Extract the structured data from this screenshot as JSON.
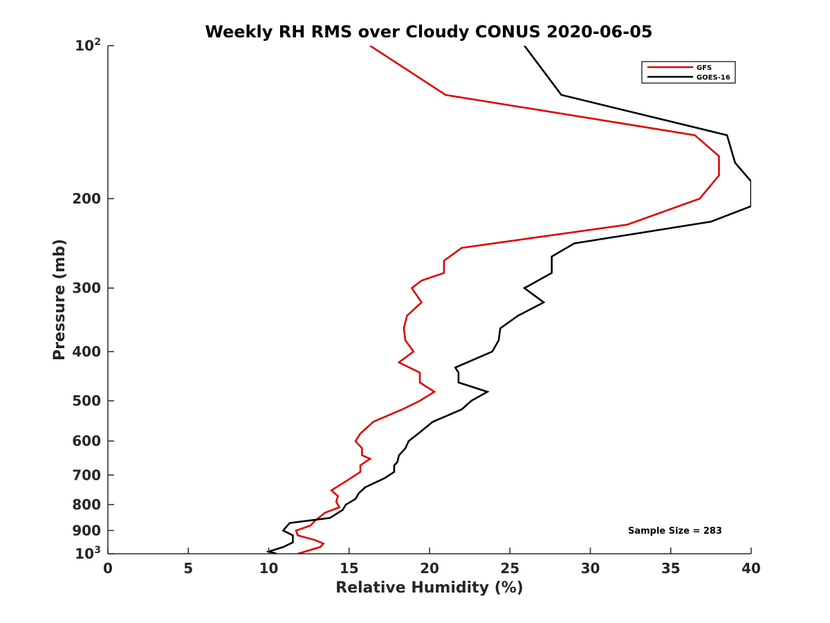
{
  "chart_data": {
    "type": "line",
    "title": "Weekly RH RMS over Cloudy CONUS 2020-06-05",
    "xlabel": "Relative Humidity (%)",
    "ylabel": "Pressure (mb)",
    "xlim": [
      0,
      40
    ],
    "ylim": [
      100,
      1000
    ],
    "y_scale": "log",
    "y_reversed": true,
    "grid": false,
    "legend_position": "top-right",
    "x_ticks": [
      "0",
      "5",
      "10",
      "15",
      "20",
      "25",
      "30",
      "35",
      "40"
    ],
    "y_ticks": [
      {
        "value": 100,
        "base": "10",
        "exp": "2"
      },
      {
        "value": 200,
        "text": "200"
      },
      {
        "value": 300,
        "text": "300"
      },
      {
        "value": 400,
        "text": "400"
      },
      {
        "value": 500,
        "text": "500"
      },
      {
        "value": 600,
        "text": "600"
      },
      {
        "value": 700,
        "text": "700"
      },
      {
        "value": 800,
        "text": "800"
      },
      {
        "value": 900,
        "text": "900"
      },
      {
        "value": 1000,
        "base": "10",
        "exp": "3"
      }
    ],
    "annotation": "Sample Size = 283",
    "series": [
      {
        "name": "GFS",
        "color": "#e00000",
        "points": [
          [
            16.3,
            100
          ],
          [
            21.0,
            125
          ],
          [
            36.5,
            150
          ],
          [
            38.0,
            165
          ],
          [
            38.0,
            180
          ],
          [
            36.8,
            200
          ],
          [
            32.3,
            225
          ],
          [
            22.0,
            250
          ],
          [
            20.9,
            265
          ],
          [
            20.9,
            280
          ],
          [
            19.5,
            290
          ],
          [
            18.9,
            300
          ],
          [
            19.5,
            320
          ],
          [
            18.6,
            340
          ],
          [
            18.4,
            360
          ],
          [
            18.5,
            380
          ],
          [
            19.0,
            400
          ],
          [
            18.1,
            420
          ],
          [
            19.4,
            440
          ],
          [
            19.4,
            460
          ],
          [
            20.3,
            480
          ],
          [
            19.4,
            500
          ],
          [
            18.3,
            520
          ],
          [
            16.5,
            550
          ],
          [
            15.7,
            580
          ],
          [
            15.4,
            600
          ],
          [
            15.8,
            620
          ],
          [
            15.8,
            640
          ],
          [
            16.3,
            650
          ],
          [
            15.7,
            670
          ],
          [
            15.7,
            690
          ],
          [
            14.8,
            720
          ],
          [
            13.9,
            750
          ],
          [
            14.3,
            770
          ],
          [
            14.2,
            790
          ],
          [
            14.4,
            810
          ],
          [
            13.5,
            830
          ],
          [
            12.9,
            860
          ],
          [
            12.6,
            880
          ],
          [
            11.7,
            900
          ],
          [
            11.8,
            920
          ],
          [
            12.9,
            940
          ],
          [
            13.4,
            955
          ],
          [
            13.2,
            970
          ],
          [
            11.8,
            1000
          ]
        ]
      },
      {
        "name": "GOES-16",
        "color": "#000000",
        "points": [
          [
            25.9,
            100
          ],
          [
            28.2,
            125
          ],
          [
            38.5,
            150
          ],
          [
            39.0,
            170
          ],
          [
            40.0,
            185
          ],
          [
            40.0,
            207
          ],
          [
            37.5,
            222
          ],
          [
            29.0,
            245
          ],
          [
            27.6,
            260
          ],
          [
            27.6,
            280
          ],
          [
            25.9,
            300
          ],
          [
            27.1,
            320
          ],
          [
            25.5,
            340
          ],
          [
            24.4,
            360
          ],
          [
            24.3,
            380
          ],
          [
            23.9,
            400
          ],
          [
            21.6,
            430
          ],
          [
            21.8,
            440
          ],
          [
            21.8,
            460
          ],
          [
            23.6,
            480
          ],
          [
            22.6,
            500
          ],
          [
            22.0,
            520
          ],
          [
            20.2,
            550
          ],
          [
            19.3,
            580
          ],
          [
            18.7,
            600
          ],
          [
            18.5,
            620
          ],
          [
            18.1,
            640
          ],
          [
            18.0,
            660
          ],
          [
            17.8,
            670
          ],
          [
            17.8,
            690
          ],
          [
            17.2,
            710
          ],
          [
            16.0,
            740
          ],
          [
            15.6,
            760
          ],
          [
            15.4,
            780
          ],
          [
            14.8,
            800
          ],
          [
            14.6,
            820
          ],
          [
            13.8,
            850
          ],
          [
            11.3,
            870
          ],
          [
            10.9,
            900
          ],
          [
            11.5,
            920
          ],
          [
            11.5,
            950
          ],
          [
            10.9,
            970
          ],
          [
            10.0,
            990
          ],
          [
            10.5,
            1000
          ]
        ]
      }
    ]
  }
}
